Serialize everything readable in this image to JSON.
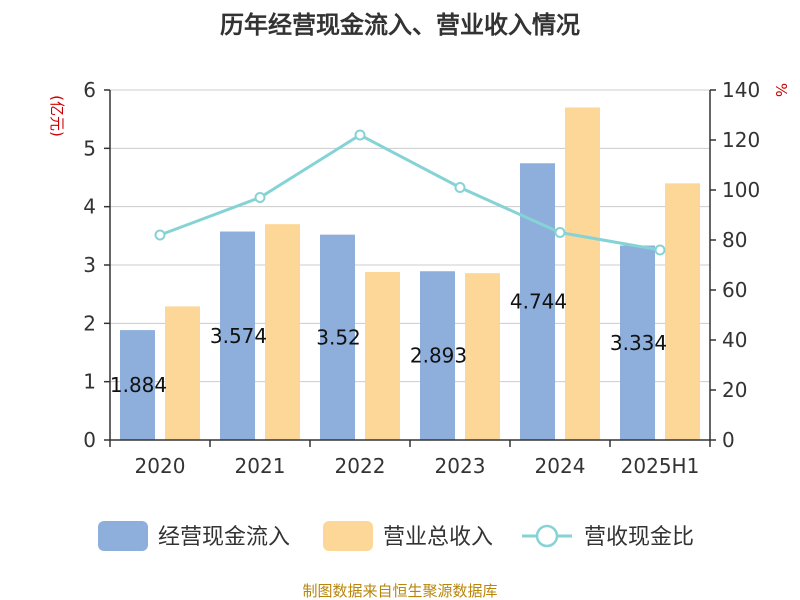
{
  "chart_data": {
    "type": "bar",
    "title": "历年经营现金流入、营业收入情况",
    "categories": [
      "2020",
      "2021",
      "2022",
      "2023",
      "2024",
      "2025H1"
    ],
    "series": [
      {
        "name": "经营现金流入",
        "type": "bar",
        "axis": "left",
        "color": "#8eaedb",
        "values": [
          1.884,
          3.574,
          3.52,
          2.893,
          4.744,
          3.334
        ],
        "labels": [
          "1.884",
          "3.574",
          "3.52",
          "2.893",
          "4.744",
          "3.334"
        ]
      },
      {
        "name": "营业总收入",
        "type": "bar",
        "axis": "left",
        "color": "#fdd797",
        "values": [
          2.29,
          3.7,
          2.88,
          2.86,
          5.7,
          4.4
        ]
      },
      {
        "name": "营收现金比",
        "type": "line",
        "axis": "right",
        "color": "#86d3d6",
        "values": [
          82,
          97,
          122,
          101,
          83,
          76
        ]
      }
    ],
    "left_axis": {
      "label": "(亿元)",
      "min": 0,
      "max": 6,
      "ticks": [
        0,
        1,
        2,
        3,
        4,
        5,
        6
      ]
    },
    "right_axis": {
      "label": "%",
      "min": 0,
      "max": 140,
      "ticks": [
        0,
        20,
        40,
        60,
        80,
        100,
        120,
        140
      ]
    },
    "grid": true,
    "legend_position": "bottom"
  },
  "source_note": "制图数据来自恒生聚源数据库"
}
